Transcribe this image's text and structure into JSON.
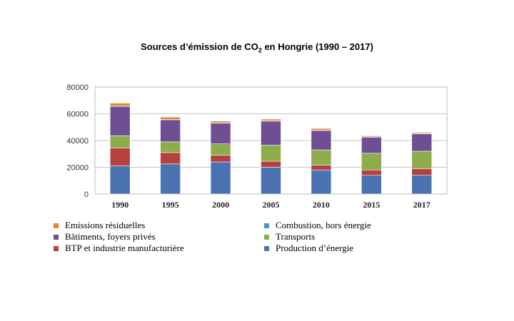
{
  "chart_data": {
    "type": "bar",
    "stacked": true,
    "title_main": "Sources d’émission de CO",
    "title_sub": "2",
    "title_tail": " en Hongrie (1990 – 2017)",
    "categories": [
      "1990",
      "1995",
      "2000",
      "2005",
      "2010",
      "2015",
      "2017"
    ],
    "ylim": [
      0,
      80000
    ],
    "yticks": [
      0,
      20000,
      40000,
      60000,
      80000
    ],
    "series": [
      {
        "name": "Production d’énergie",
        "color": "#4a72b0",
        "values": [
          21000,
          22500,
          24000,
          20000,
          18000,
          14000,
          14000
        ]
      },
      {
        "name": "BTP et industrie manufacturière",
        "color": "#b5403e",
        "values": [
          13500,
          8500,
          5000,
          4500,
          3500,
          4000,
          5000
        ]
      },
      {
        "name": "Transports",
        "color": "#8cad4a",
        "values": [
          9000,
          8000,
          8500,
          12000,
          11500,
          12500,
          13000
        ]
      },
      {
        "name": "Bâtiments, foyers privés",
        "color": "#6f4f94",
        "values": [
          22000,
          16500,
          15500,
          18000,
          14500,
          12000,
          13000
        ]
      },
      {
        "name": "Combustion, hors énergie",
        "color": "#3f9cb4",
        "values": [
          200,
          200,
          200,
          200,
          200,
          200,
          200
        ]
      },
      {
        "name": "Emissions résiduelles",
        "color": "#e0883a",
        "values": [
          2300,
          1800,
          1300,
          1300,
          1300,
          800,
          800
        ]
      }
    ],
    "legend": [
      {
        "name": "Emissions résiduelles",
        "color": "#e0883a"
      },
      {
        "name": "Combustion, hors énergie",
        "color": "#3f9cb4"
      },
      {
        "name": "Bâtiments, foyers privés",
        "color": "#6f4f94"
      },
      {
        "name": "Transports",
        "color": "#8cad4a"
      },
      {
        "name": "BTP et industrie manufacturière",
        "color": "#b5403e"
      },
      {
        "name": "Production d’énergie",
        "color": "#4a72b0"
      }
    ]
  }
}
